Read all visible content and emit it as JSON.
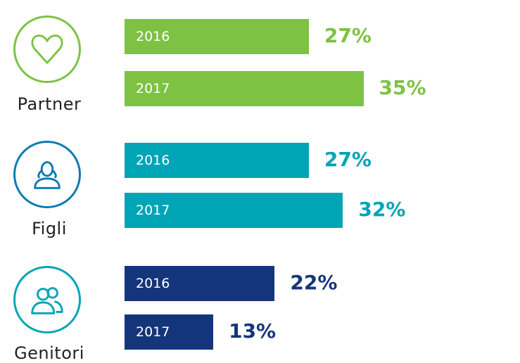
{
  "chart_data": {
    "type": "bar",
    "orientation": "horizontal",
    "categories": [
      "Partner",
      "Figli",
      "Genitori"
    ],
    "series": [
      {
        "name": "2016",
        "values": [
          27,
          27,
          22
        ]
      },
      {
        "name": "2017",
        "values": [
          35,
          32,
          13
        ]
      }
    ],
    "value_labels": [
      [
        "27%",
        "35%"
      ],
      [
        "27%",
        "32%"
      ],
      [
        "22%",
        "13%"
      ]
    ],
    "unit": "%",
    "xlim": [
      0,
      100
    ],
    "grid": false,
    "legend": "none"
  },
  "groups": [
    {
      "label": "Partner",
      "icon": "heart-icon",
      "color": "#7dc243",
      "bars": [
        {
          "year": "2016",
          "value": 27,
          "label": "27%"
        },
        {
          "year": "2017",
          "value": 35,
          "label": "35%"
        }
      ]
    },
    {
      "label": "Figli",
      "icon": "child-icon",
      "color": "#00a5b5",
      "bars": [
        {
          "year": "2016",
          "value": 27,
          "label": "27%"
        },
        {
          "year": "2017",
          "value": 32,
          "label": "32%"
        }
      ]
    },
    {
      "label": "Genitori",
      "icon": "parents-icon",
      "color": "#15357a",
      "bars": [
        {
          "year": "2016",
          "value": 22,
          "label": "22%"
        },
        {
          "year": "2017",
          "value": 13,
          "label": "13%"
        }
      ]
    }
  ],
  "colors": {
    "group_1": "#7dc243",
    "icon_2_ring": "#0b7bb3",
    "group_2_bars": "#00a5b5",
    "group_3_bars": "#15357a",
    "icon_3_ring": "#00a5b5"
  }
}
